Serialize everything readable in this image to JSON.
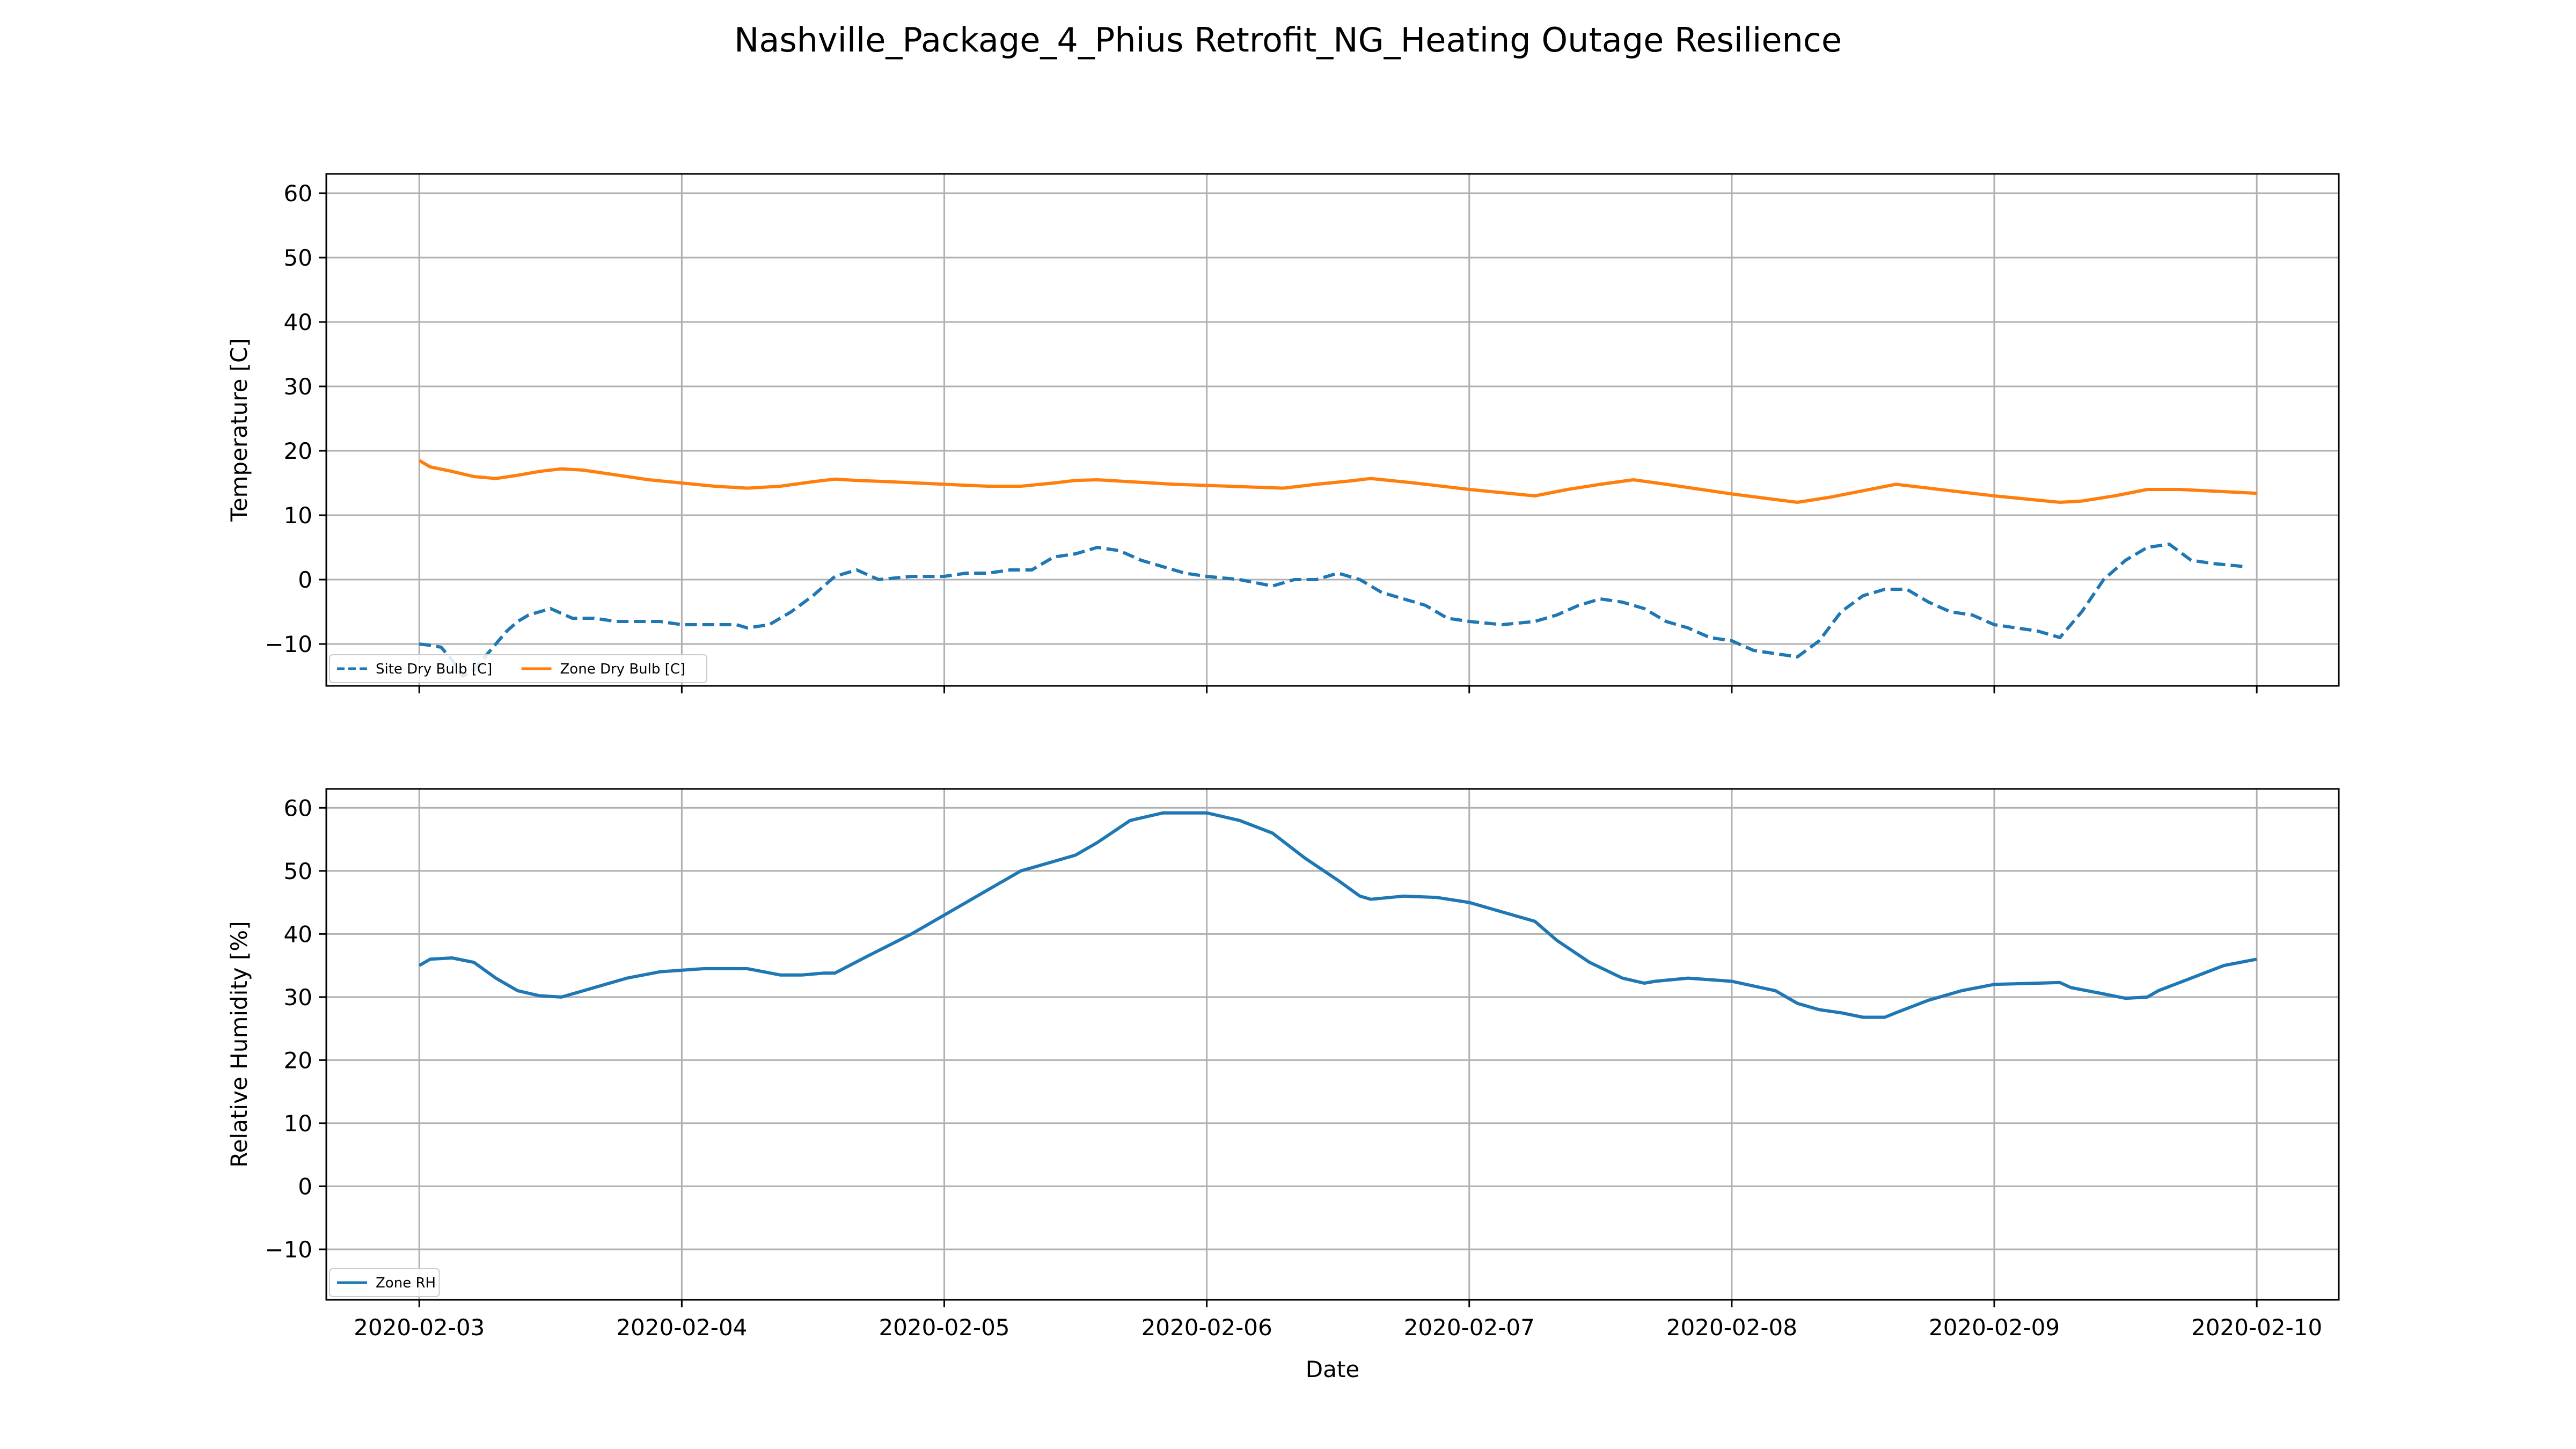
{
  "title": "Nashville_Package_4_Phius Retrofit_NG_Heating Outage Resilience",
  "chart_data": [
    {
      "type": "line",
      "ylabel": "Temperature [C]",
      "xlabel": "",
      "ylim": [
        -16.5,
        63
      ],
      "yticks": [
        -10,
        0,
        10,
        20,
        30,
        40,
        50,
        60
      ],
      "xlim": [
        "2020-02-02 15:30",
        "2020-02-10 07:30"
      ],
      "xticks": [
        "2020-02-03",
        "2020-02-04",
        "2020-02-05",
        "2020-02-06",
        "2020-02-07",
        "2020-02-08",
        "2020-02-09",
        "2020-02-10"
      ],
      "show_xtick_labels": false,
      "grid": true,
      "legend": "lower-left",
      "legend_ncol": 2,
      "series": [
        {
          "name": "Site Dry Bulb [C]",
          "color": "#1f77b4",
          "dash": true,
          "x": [
            "2020-02-03 00:00",
            "2020-02-03 01:00",
            "2020-02-03 02:00",
            "2020-02-03 03:00",
            "2020-02-03 04:00",
            "2020-02-03 05:00",
            "2020-02-03 06:00",
            "2020-02-03 07:00",
            "2020-02-03 08:00",
            "2020-02-03 09:00",
            "2020-02-03 10:00",
            "2020-02-03 12:00",
            "2020-02-03 14:00",
            "2020-02-03 16:00",
            "2020-02-03 18:00",
            "2020-02-03 20:00",
            "2020-02-03 22:00",
            "2020-02-04 00:00",
            "2020-02-04 03:00",
            "2020-02-04 05:00",
            "2020-02-04 06:00",
            "2020-02-04 08:00",
            "2020-02-04 10:00",
            "2020-02-04 12:00",
            "2020-02-04 14:00",
            "2020-02-04 16:00",
            "2020-02-04 18:00",
            "2020-02-04 21:00",
            "2020-02-05 00:00",
            "2020-02-05 02:00",
            "2020-02-05 04:00",
            "2020-02-05 06:00",
            "2020-02-05 08:00",
            "2020-02-05 10:00",
            "2020-02-05 12:00",
            "2020-02-05 14:00",
            "2020-02-05 16:00",
            "2020-02-05 18:00",
            "2020-02-05 20:00",
            "2020-02-05 22:00",
            "2020-02-06 00:00",
            "2020-02-06 03:00",
            "2020-02-06 06:00",
            "2020-02-06 08:00",
            "2020-02-06 10:00",
            "2020-02-06 12:00",
            "2020-02-06 14:00",
            "2020-02-06 16:00",
            "2020-02-06 18:00",
            "2020-02-06 20:00",
            "2020-02-06 22:00",
            "2020-02-07 00:00",
            "2020-02-07 03:00",
            "2020-02-07 06:00",
            "2020-02-07 08:00",
            "2020-02-07 10:00",
            "2020-02-07 12:00",
            "2020-02-07 14:00",
            "2020-02-07 16:00",
            "2020-02-07 18:00",
            "2020-02-07 20:00",
            "2020-02-07 22:00",
            "2020-02-08 00:00",
            "2020-02-08 02:00",
            "2020-02-08 04:00",
            "2020-02-08 06:00",
            "2020-02-08 08:00",
            "2020-02-08 10:00",
            "2020-02-08 12:00",
            "2020-02-08 14:00",
            "2020-02-08 16:00",
            "2020-02-08 18:00",
            "2020-02-08 20:00",
            "2020-02-08 22:00",
            "2020-02-09 00:00",
            "2020-02-09 02:00",
            "2020-02-09 04:00",
            "2020-02-09 06:00",
            "2020-02-09 08:00",
            "2020-02-09 10:00",
            "2020-02-09 12:00",
            "2020-02-09 14:00",
            "2020-02-09 16:00",
            "2020-02-09 18:00",
            "2020-02-09 20:00",
            "2020-02-09 23:00"
          ],
          "values": [
            -10.0,
            -10.2,
            -10.5,
            -12.5,
            -15.0,
            -14.0,
            -12.0,
            -10.0,
            -8.0,
            -6.5,
            -5.5,
            -4.5,
            -6.0,
            -6.0,
            -6.5,
            -6.5,
            -6.5,
            -7.0,
            -7.0,
            -7.0,
            -7.5,
            -7.0,
            -5.0,
            -2.5,
            0.5,
            1.5,
            0.0,
            0.5,
            0.5,
            1.0,
            1.0,
            1.5,
            1.5,
            3.5,
            4.0,
            5.0,
            4.5,
            3.0,
            2.0,
            1.0,
            0.5,
            0.0,
            -1.0,
            0.0,
            0.0,
            1.0,
            0.0,
            -2.0,
            -3.0,
            -4.0,
            -6.0,
            -6.5,
            -7.0,
            -6.5,
            -5.5,
            -4.0,
            -3.0,
            -3.5,
            -4.5,
            -6.5,
            -7.5,
            -9.0,
            -9.5,
            -11.0,
            -11.5,
            -12.0,
            -9.5,
            -5.0,
            -2.5,
            -1.5,
            -1.5,
            -3.5,
            -5.0,
            -5.5,
            -7.0,
            -7.5,
            -8.0,
            -9.0,
            -5.0,
            0.0,
            3.0,
            5.0,
            5.5,
            3.0,
            2.5,
            2.0
          ]
        },
        {
          "name": "Zone Dry Bulb [C]",
          "color": "#ff7f0e",
          "dash": false,
          "x": [
            "2020-02-03 00:00",
            "2020-02-03 01:00",
            "2020-02-03 03:00",
            "2020-02-03 05:00",
            "2020-02-03 07:00",
            "2020-02-03 09:00",
            "2020-02-03 11:00",
            "2020-02-03 13:00",
            "2020-02-03 15:00",
            "2020-02-03 17:00",
            "2020-02-03 19:00",
            "2020-02-03 21:00",
            "2020-02-04 00:00",
            "2020-02-04 03:00",
            "2020-02-04 06:00",
            "2020-02-04 09:00",
            "2020-02-04 12:00",
            "2020-02-04 14:00",
            "2020-02-04 16:00",
            "2020-02-04 19:00",
            "2020-02-05 00:00",
            "2020-02-05 04:00",
            "2020-02-05 07:00",
            "2020-02-05 10:00",
            "2020-02-05 12:00",
            "2020-02-05 14:00",
            "2020-02-05 17:00",
            "2020-02-05 21:00",
            "2020-02-06 02:00",
            "2020-02-06 07:00",
            "2020-02-06 10:00",
            "2020-02-06 13:00",
            "2020-02-06 15:00",
            "2020-02-06 19:00",
            "2020-02-07 00:00",
            "2020-02-07 03:00",
            "2020-02-07 06:00",
            "2020-02-07 09:00",
            "2020-02-07 12:00",
            "2020-02-07 15:00",
            "2020-02-07 18:00",
            "2020-02-08 00:00",
            "2020-02-08 06:00",
            "2020-02-08 09:00",
            "2020-02-08 12:00",
            "2020-02-08 15:00",
            "2020-02-08 18:00",
            "2020-02-09 00:00",
            "2020-02-09 06:00",
            "2020-02-09 08:00",
            "2020-02-09 11:00",
            "2020-02-09 14:00",
            "2020-02-09 17:00",
            "2020-02-10 00:00"
          ],
          "values": [
            18.5,
            17.5,
            16.8,
            16.0,
            15.7,
            16.2,
            16.8,
            17.2,
            17.0,
            16.5,
            16.0,
            15.5,
            15.0,
            14.5,
            14.2,
            14.5,
            15.2,
            15.6,
            15.4,
            15.2,
            14.8,
            14.5,
            14.5,
            15.0,
            15.4,
            15.5,
            15.2,
            14.8,
            14.5,
            14.2,
            14.8,
            15.3,
            15.7,
            15.0,
            14.0,
            13.5,
            13.0,
            14.0,
            14.8,
            15.5,
            14.8,
            13.3,
            12.0,
            12.8,
            13.8,
            14.8,
            14.2,
            13.0,
            12.0,
            12.2,
            13.0,
            14.0,
            14.0,
            13.4
          ]
        }
      ]
    },
    {
      "type": "line",
      "ylabel": "Relative Humidity [%]",
      "xlabel": "Date",
      "ylim": [
        -18,
        63
      ],
      "yticks": [
        -10,
        0,
        10,
        20,
        30,
        40,
        50,
        60
      ],
      "xlim": [
        "2020-02-02 15:30",
        "2020-02-10 07:30"
      ],
      "xticks": [
        "2020-02-03",
        "2020-02-04",
        "2020-02-05",
        "2020-02-06",
        "2020-02-07",
        "2020-02-08",
        "2020-02-09",
        "2020-02-10"
      ],
      "show_xtick_labels": true,
      "grid": true,
      "legend": "lower-left",
      "legend_ncol": 1,
      "series": [
        {
          "name": "Zone RH",
          "color": "#1f77b4",
          "dash": false,
          "x": [
            "2020-02-03 00:00",
            "2020-02-03 01:00",
            "2020-02-03 03:00",
            "2020-02-03 05:00",
            "2020-02-03 07:00",
            "2020-02-03 09:00",
            "2020-02-03 11:00",
            "2020-02-03 13:00",
            "2020-02-03 16:00",
            "2020-02-03 19:00",
            "2020-02-03 22:00",
            "2020-02-04 02:00",
            "2020-02-04 06:00",
            "2020-02-04 09:00",
            "2020-02-04 11:00",
            "2020-02-04 13:00",
            "2020-02-04 14:00",
            "2020-02-04 17:00",
            "2020-02-04 21:00",
            "2020-02-05 00:00",
            "2020-02-05 04:00",
            "2020-02-05 07:00",
            "2020-02-05 10:00",
            "2020-02-05 12:00",
            "2020-02-05 14:00",
            "2020-02-05 17:00",
            "2020-02-05 20:00",
            "2020-02-06 00:00",
            "2020-02-06 03:00",
            "2020-02-06 06:00",
            "2020-02-06 09:00",
            "2020-02-06 12:00",
            "2020-02-06 14:00",
            "2020-02-06 15:00",
            "2020-02-06 18:00",
            "2020-02-06 21:00",
            "2020-02-07 00:00",
            "2020-02-07 03:00",
            "2020-02-07 06:00",
            "2020-02-07 08:00",
            "2020-02-07 11:00",
            "2020-02-07 14:00",
            "2020-02-07 16:00",
            "2020-02-07 17:00",
            "2020-02-07 20:00",
            "2020-02-08 00:00",
            "2020-02-08 04:00",
            "2020-02-08 06:00",
            "2020-02-08 08:00",
            "2020-02-08 10:00",
            "2020-02-08 12:00",
            "2020-02-08 14:00",
            "2020-02-08 15:00",
            "2020-02-08 18:00",
            "2020-02-08 21:00",
            "2020-02-09 00:00",
            "2020-02-09 04:00",
            "2020-02-09 06:00",
            "2020-02-09 07:00",
            "2020-02-09 10:00",
            "2020-02-09 12:00",
            "2020-02-09 14:00",
            "2020-02-09 15:00",
            "2020-02-09 18:00",
            "2020-02-09 21:00",
            "2020-02-10 00:00"
          ],
          "values": [
            35.0,
            36.0,
            36.2,
            35.5,
            33.0,
            31.0,
            30.2,
            30.0,
            31.5,
            33.0,
            34.0,
            34.5,
            34.5,
            33.5,
            33.5,
            33.8,
            33.8,
            36.5,
            40.0,
            43.0,
            47.0,
            50.0,
            51.5,
            52.5,
            54.5,
            58.0,
            59.2,
            59.2,
            58.0,
            56.0,
            52.0,
            48.5,
            46.0,
            45.5,
            46.0,
            45.8,
            45.0,
            43.5,
            42.0,
            39.0,
            35.5,
            33.0,
            32.2,
            32.5,
            33.0,
            32.5,
            31.0,
            29.0,
            28.0,
            27.5,
            26.8,
            26.8,
            27.5,
            29.5,
            31.0,
            32.0,
            32.2,
            32.3,
            31.5,
            30.5,
            29.8,
            30.0,
            31.0,
            33.0,
            35.0,
            36.0
          ]
        }
      ]
    }
  ]
}
